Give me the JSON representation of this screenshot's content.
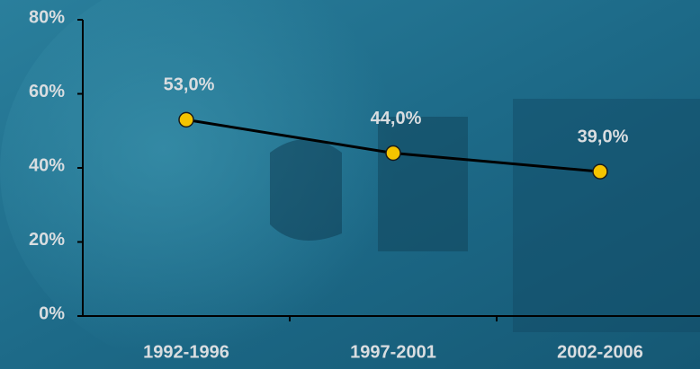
{
  "chart_data": {
    "type": "line",
    "categories": [
      "1992-1996",
      "1997-2001",
      "2002-2006"
    ],
    "values": [
      53,
      44,
      39
    ],
    "value_labels": [
      "53,0%",
      "44,0%",
      "39,0%"
    ],
    "color": "#000000",
    "marker_color": "#f5c400",
    "ylim": [
      0,
      80
    ],
    "yticks": [
      {
        "value": 0,
        "label": "0%"
      },
      {
        "value": 20,
        "label": "20%"
      },
      {
        "value": 40,
        "label": "40%"
      },
      {
        "value": 60,
        "label": "60%"
      },
      {
        "value": 80,
        "label": "80%"
      }
    ],
    "grid": false
  }
}
